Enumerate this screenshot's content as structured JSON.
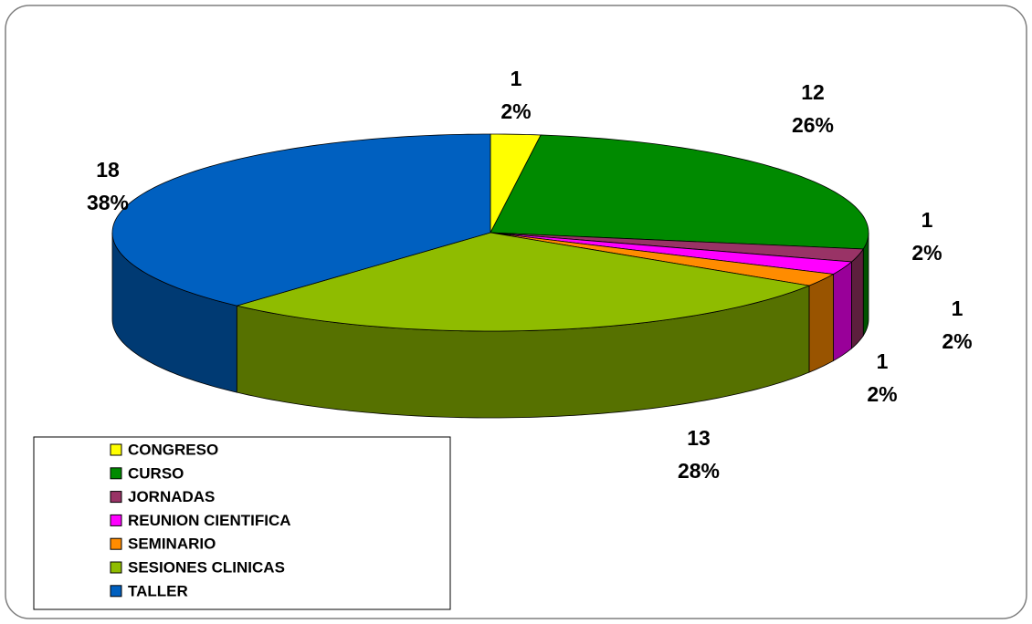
{
  "chart_data": {
    "type": "pie3d",
    "categories": [
      "CONGRESO",
      "CURSO",
      "JORNADAS",
      "REUNION CIENTIFICA",
      "SEMINARIO",
      "SESIONES CLINICAS",
      "TALLER"
    ],
    "values": [
      1,
      12,
      1,
      1,
      1,
      13,
      18
    ],
    "percent_labels": [
      "2%",
      "26%",
      "2%",
      "2%",
      "2%",
      "28%",
      "38%"
    ],
    "colors": [
      "#ffff00",
      "#008a00",
      "#993366",
      "#ff00ff",
      "#ff8c00",
      "#8fbc00",
      "#0060c0"
    ],
    "legend": "bottom-left"
  }
}
